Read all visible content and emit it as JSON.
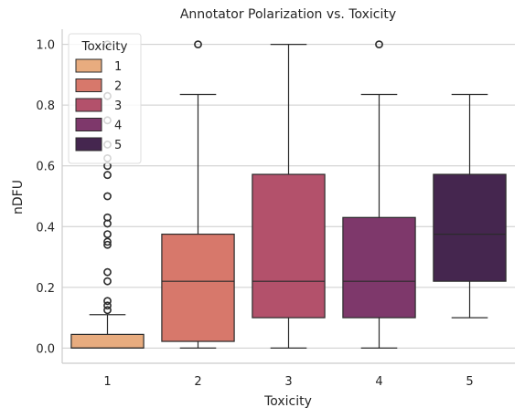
{
  "chart_data": {
    "type": "box",
    "title": "Annotator Polarization vs. Toxicity",
    "xlabel": "Toxicity",
    "ylabel": "nDFU",
    "ylim": [
      -0.05,
      1.05
    ],
    "yticks": [
      0.0,
      0.2,
      0.4,
      0.6,
      0.8,
      1.0
    ],
    "ytick_labels": [
      "0.0",
      "0.2",
      "0.4",
      "0.6",
      "0.8",
      "1.0"
    ],
    "categories": [
      "1",
      "2",
      "3",
      "4",
      "5"
    ],
    "grid": "horizontal",
    "legend": {
      "title": "Toxicity",
      "placement": "top-left",
      "entries": [
        "1",
        "2",
        "3",
        "4",
        "5"
      ]
    },
    "series": [
      {
        "name": "1",
        "color": "#e8ac7f",
        "whisker_low": 0.0,
        "q1": 0.0,
        "median": 0.0,
        "q3": 0.045,
        "whisker_high": 0.11,
        "outliers": [
          0.125,
          0.14,
          0.155,
          0.22,
          0.25,
          0.34,
          0.35,
          0.375,
          0.41,
          0.43,
          0.5,
          0.57,
          0.6,
          0.625,
          0.67,
          0.75,
          0.83,
          1.0
        ]
      },
      {
        "name": "2",
        "color": "#d7786b",
        "whisker_low": 0.0,
        "q1": 0.022,
        "median": 0.22,
        "q3": 0.375,
        "whisker_high": 0.835,
        "outliers": [
          1.0
        ]
      },
      {
        "name": "3",
        "color": "#b3516b",
        "whisker_low": 0.0,
        "q1": 0.1,
        "median": 0.22,
        "q3": 0.572,
        "whisker_high": 1.0,
        "outliers": []
      },
      {
        "name": "4",
        "color": "#7e386b",
        "whisker_low": 0.0,
        "q1": 0.1,
        "median": 0.22,
        "q3": 0.43,
        "whisker_high": 0.835,
        "outliers": [
          1.0
        ]
      },
      {
        "name": "5",
        "color": "#45264f",
        "whisker_low": 0.1,
        "q1": 0.22,
        "median": 0.375,
        "q3": 0.572,
        "whisker_high": 0.835,
        "outliers": []
      }
    ]
  }
}
